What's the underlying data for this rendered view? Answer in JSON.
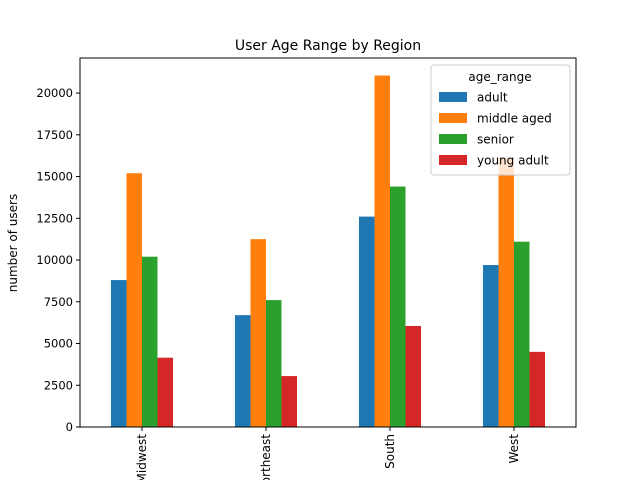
{
  "chart_data": {
    "type": "bar",
    "title": "User Age Range by Region",
    "xlabel": "",
    "ylabel": "number of users",
    "categories": [
      "Midwest",
      "Northeast",
      "South",
      "West"
    ],
    "series": [
      {
        "name": "adult",
        "color": "#1f77b4",
        "values": [
          8800,
          6700,
          12600,
          9700
        ]
      },
      {
        "name": "middle aged",
        "color": "#ff7f0e",
        "values": [
          15200,
          11250,
          21050,
          16100
        ]
      },
      {
        "name": "senior",
        "color": "#2ca02c",
        "values": [
          10200,
          7600,
          14400,
          11100
        ]
      },
      {
        "name": "young adult",
        "color": "#d62728",
        "values": [
          4150,
          3050,
          6050,
          4500
        ]
      }
    ],
    "ylim": [
      0,
      22100
    ],
    "yticks": [
      0,
      2500,
      5000,
      7500,
      10000,
      12500,
      15000,
      17500,
      20000
    ],
    "ytick_labels": [
      "0",
      "2500",
      "5000",
      "7500",
      "10000",
      "12500",
      "15000",
      "17500",
      "20000"
    ],
    "legend": {
      "title": "age_range",
      "placement": "top-right"
    },
    "grid": false
  }
}
